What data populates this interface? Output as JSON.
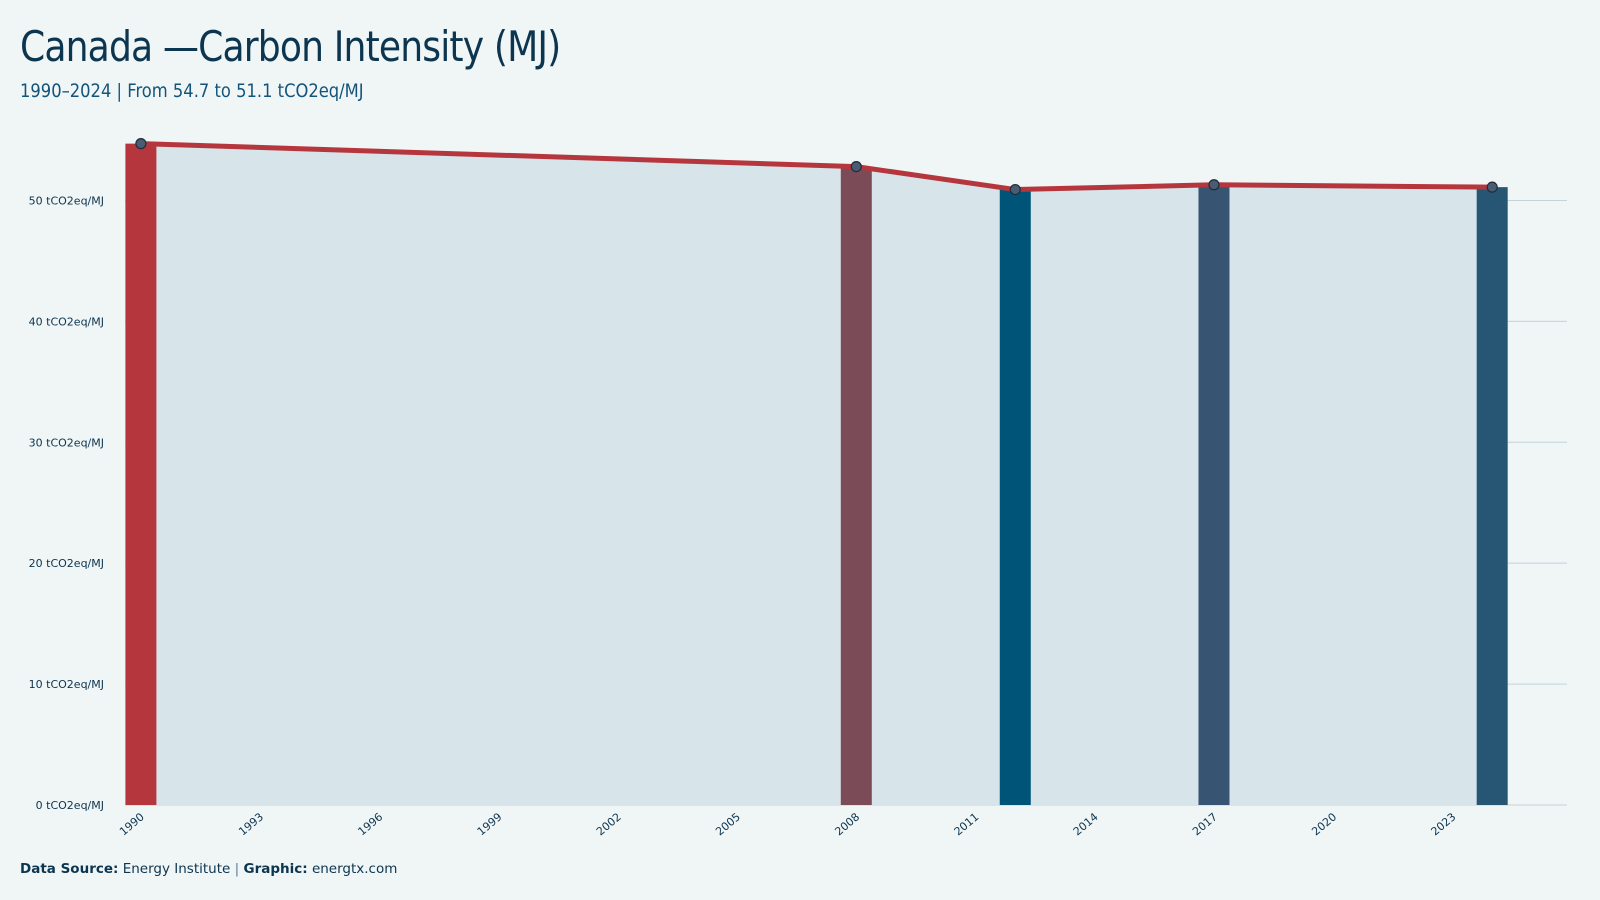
{
  "header": {
    "title": "Canada —Carbon Intensity (MJ)",
    "subtitle": "1990–2024 | From 54.7 to 51.1 tCO2eq/MJ"
  },
  "footer": {
    "source_label": "Data Source:",
    "source_value": "Energy Institute",
    "separator": "|",
    "graphic_label": "Graphic:",
    "graphic_value": "energtx.com"
  },
  "colors": {
    "background": "#f0f5f6",
    "area_fill": "#d7e4e9",
    "line": "#b5373d",
    "grid": "#c3d3da",
    "text": "#0c3550"
  },
  "chart_data": {
    "type": "line",
    "x": [
      1990,
      2008,
      2012,
      2017,
      2024
    ],
    "y": [
      54.7,
      52.8,
      50.9,
      51.3,
      51.1
    ],
    "bar_colors": [
      "#b5373d",
      "#7b4b58",
      "#005478",
      "#375473",
      "#275574"
    ],
    "xlim": [
      1989.6,
      2024.75
    ],
    "ylim": [
      0,
      55
    ],
    "yticks": [
      0,
      10,
      20,
      30,
      40,
      50
    ],
    "ytick_labels": [
      "0 tCO2eq/MJ",
      "10 tCO2eq/MJ",
      "20 tCO2eq/MJ",
      "30 tCO2eq/MJ",
      "40 tCO2eq/MJ",
      "50 tCO2eq/MJ"
    ],
    "xticks": [
      1990,
      1993,
      1996,
      1999,
      2002,
      2005,
      2008,
      2011,
      2014,
      2017,
      2020,
      2023
    ],
    "xtick_labels": [
      "1990",
      "1993",
      "1996",
      "1999",
      "2002",
      "2005",
      "2008",
      "2011",
      "2014",
      "2017",
      "2020",
      "2023"
    ],
    "grid": true,
    "legend": "none"
  }
}
